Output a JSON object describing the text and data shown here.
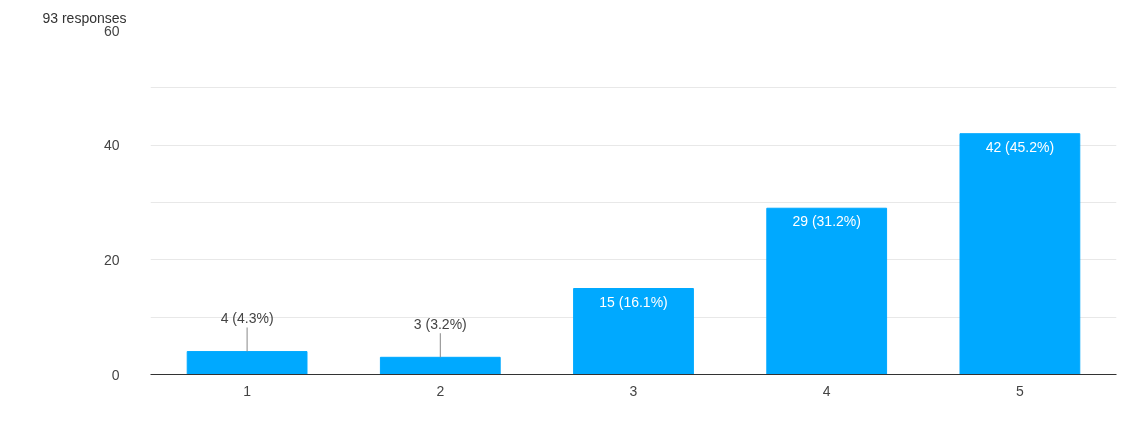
{
  "chart_data": {
    "type": "bar",
    "title": "93 responses",
    "categories": [
      "1",
      "2",
      "3",
      "4",
      "5"
    ],
    "values": [
      4,
      3,
      15,
      29,
      42
    ],
    "value_labels": [
      "4 (4.3%)",
      "3 (3.2%)",
      "15 (16.1%)",
      "29 (31.2%)",
      "42 (45.2%)"
    ],
    "color": "#00a9ff",
    "ylim": [
      0,
      60
    ],
    "yticks": [
      0,
      {
        "value": 10,
        "label": null
      },
      20,
      {
        "value": 30,
        "label": null
      },
      40,
      {
        "value": 50,
        "label": null
      },
      60
    ],
    "grid": "y"
  }
}
